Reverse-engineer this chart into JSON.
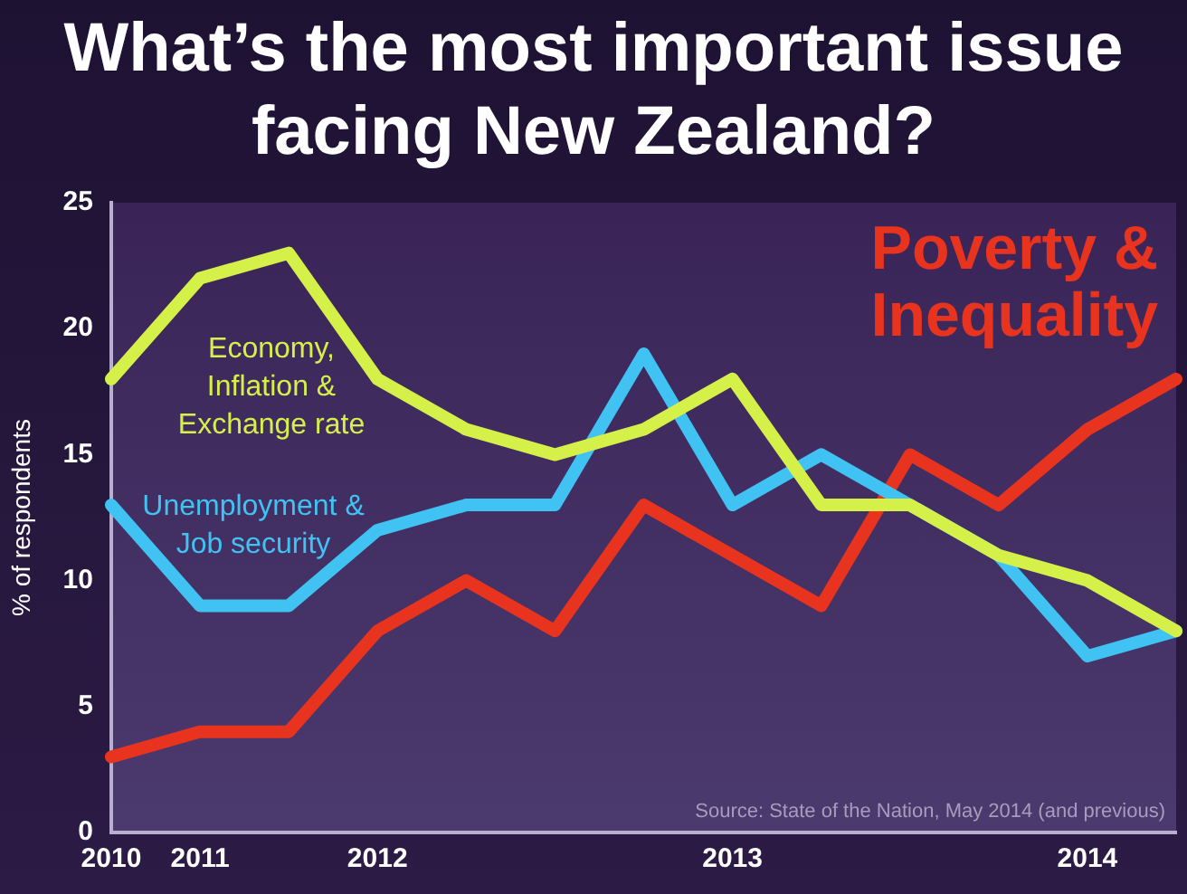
{
  "chart_data": {
    "type": "line",
    "title": "What’s the most important issue facing New Zealand?",
    "ylabel": "% of respondents",
    "categories": [
      "2010",
      "2011",
      null,
      "2012",
      null,
      null,
      null,
      "2013",
      null,
      null,
      null,
      "2014",
      null
    ],
    "series": [
      {
        "name": "Economy, Inflation & Exchange rate",
        "color": "#d6f04a",
        "values": [
          18,
          22,
          23,
          18,
          16,
          15,
          16,
          18,
          13,
          13,
          11,
          10,
          8
        ]
      },
      {
        "name": "Unemployment & Job security",
        "color": "#40c2f2",
        "values": [
          13,
          9,
          9,
          12,
          13,
          13,
          19,
          13,
          15,
          13,
          11,
          7,
          8
        ]
      },
      {
        "name": "Poverty & Inequality",
        "color": "#e8341f",
        "values": [
          3,
          4,
          4,
          8,
          10,
          8,
          13,
          11,
          9,
          15,
          13,
          16,
          18
        ]
      }
    ],
    "ylim": [
      0,
      25
    ],
    "yticks": [
      0,
      5,
      10,
      15,
      20,
      25
    ],
    "grid": false,
    "legend": false,
    "marker": "none",
    "line_style": "solid",
    "annotations": [
      "Source: State of the Nation, May 2014 (and previous)"
    ]
  }
}
